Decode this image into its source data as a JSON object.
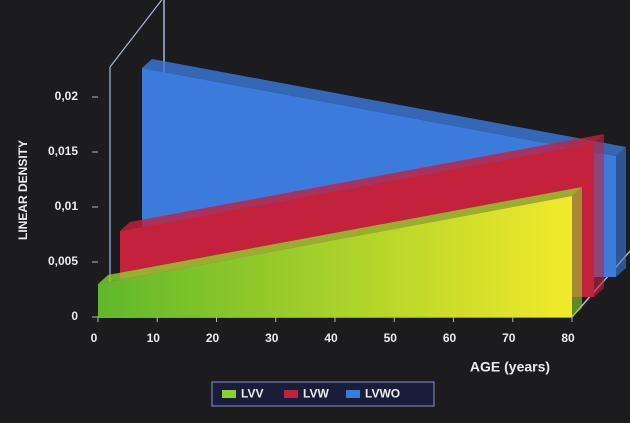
{
  "chart_data": {
    "type": "area3d",
    "x_label": "AGE (years)",
    "y_label": "LINEAR DENSITY",
    "x": [
      0,
      80
    ],
    "series": [
      {
        "name": "LVV",
        "color": "#8fd12c",
        "values": [
          0.003,
          0.011
        ]
      },
      {
        "name": "LVW",
        "color": "#c4213c",
        "values": [
          0.006,
          0.014
        ]
      },
      {
        "name": "LVWO",
        "color": "#3b7bdc",
        "values": [
          0.019,
          0.011
        ]
      }
    ],
    "xlim": [
      0,
      80
    ],
    "xticks": [
      0,
      10,
      20,
      30,
      40,
      50,
      60,
      70,
      80
    ],
    "ylim": [
      0,
      0.02
    ],
    "yticks": [
      0,
      {
        "value": 0.005,
        "label": "0,005"
      },
      {
        "value": 0.01,
        "label": "0,01"
      },
      {
        "value": 0.015,
        "label": "0,015"
      },
      {
        "value": 0.02,
        "label": "0,02"
      }
    ],
    "legend": "bottom"
  }
}
